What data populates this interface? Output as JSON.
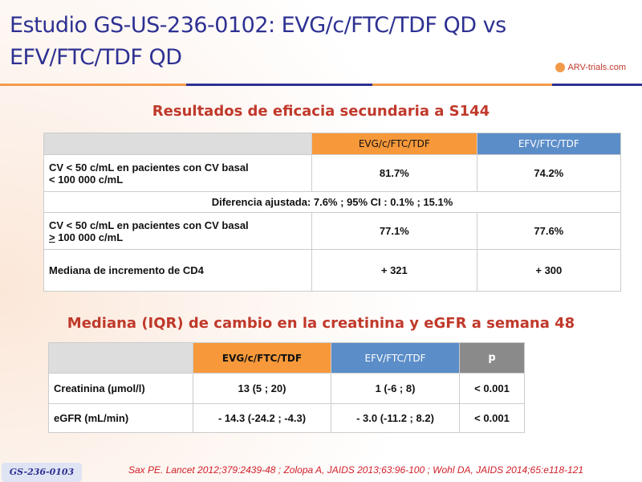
{
  "title": "Estudio GS-US-236-0102: EVG/c/FTC/TDF QD vs EFV/FTC/TDF QD",
  "logo": "ARV-trials.com",
  "section1": {
    "heading": "Resultados de eficacia secundaria a S144",
    "headers": [
      "EVG/c/FTC/TDF",
      "EFV/FTC/TDF"
    ],
    "rows": [
      {
        "label_line1": "CV < 50 c/mL en pacientes con CV basal",
        "label_line2": "< 100 000 c/mL",
        "values": [
          "81.7%",
          "74.2%"
        ]
      },
      {
        "span": "Diferencia ajustada: 7.6% ; 95% CI : 0.1% ; 15.1%"
      },
      {
        "label_line1": "CV < 50 c/mL en pacientes con CV basal",
        "label_line2_prefix": ">",
        "label_line2": " 100 000 c/mL",
        "values": [
          "77.1%",
          "77.6%"
        ]
      },
      {
        "label": "Mediana de incremento de CD4",
        "values": [
          "+ 321",
          "+ 300"
        ]
      }
    ]
  },
  "section2": {
    "heading": "Mediana (IQR) de cambio en la creatinina y eGFR a semana 48",
    "headers": [
      "EVG/c/FTC/TDF",
      "EFV/FTC/TDF",
      "p"
    ],
    "rows": [
      {
        "label": "Creatinina (µmol/l)",
        "values": [
          "13 (5 ; 20)",
          "1 (-6 ; 8)",
          "< 0.001"
        ]
      },
      {
        "label": "eGFR (mL/min)",
        "values": [
          "- 14.3 (-24.2 ; -4.3)",
          "- 3.0 (-11.2 ; 8.2)",
          "< 0.001"
        ]
      }
    ]
  },
  "badge": "GS-236-0103",
  "reference": "Sax PE. Lancet 2012;379:2439-48 ; Zolopa A, JAIDS 2013;63:96-100 ; Wohl DA, JAIDS 2014;65:e118-121"
}
